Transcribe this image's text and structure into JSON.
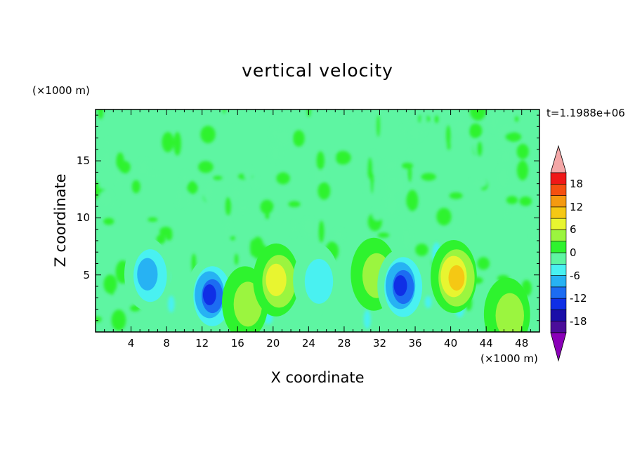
{
  "chart_data": {
    "type": "heatmap",
    "title": "vertical velocity",
    "xlabel": "X coordinate",
    "ylabel": "Z coordinate",
    "x_unit": "(×1000 m)",
    "y_unit": "(×1000 m)",
    "time_label": "t=1.1988e+06",
    "xlim": [
      0,
      50
    ],
    "ylim": [
      0,
      19.5
    ],
    "x_ticks": [
      4,
      8,
      12,
      16,
      20,
      24,
      28,
      32,
      36,
      40,
      44,
      48
    ],
    "y_ticks": [
      5,
      10,
      15
    ],
    "colorbar": {
      "levels": [
        -21,
        -18,
        -15,
        -12,
        -9,
        -6,
        -3,
        0,
        3,
        6,
        9,
        12,
        15,
        18,
        21
      ],
      "colors": [
        "#8a00b8",
        "#4b0d9a",
        "#1a0fa8",
        "#0f2fe6",
        "#1c6cf2",
        "#27b2f3",
        "#49f1f1",
        "#5ef5a2",
        "#2ef32e",
        "#9bf53f",
        "#e8f530",
        "#f5c814",
        "#f59a10",
        "#f55010",
        "#f01818",
        "#f4a7a7"
      ],
      "tick_values": [
        18,
        12,
        6,
        0,
        -6,
        -12,
        -18
      ],
      "tick_labels": [
        "18",
        "12",
        "6",
        "0",
        "-6",
        "-12",
        "-18"
      ]
    },
    "features": [
      {
        "x": 6,
        "z": 5.0,
        "value": -9
      },
      {
        "x": 13,
        "z": 3.2,
        "value": -16
      },
      {
        "x": 17,
        "z": 2.5,
        "value": 8
      },
      {
        "x": 20.5,
        "z": 4.5,
        "value": 10
      },
      {
        "x": 25,
        "z": 4.5,
        "value": -8
      },
      {
        "x": 31.5,
        "z": 5.0,
        "value": 6
      },
      {
        "x": 34.5,
        "z": 4.0,
        "value": -16
      },
      {
        "x": 40.5,
        "z": 4.8,
        "value": 13
      },
      {
        "x": 46.5,
        "z": 1.5,
        "value": 7
      }
    ],
    "background_value": -1
  }
}
